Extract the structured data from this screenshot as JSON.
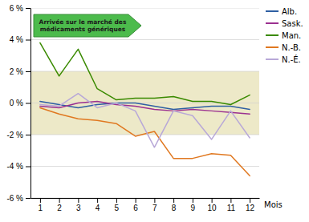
{
  "chart_data": {
    "type": "line",
    "x": [
      1,
      2,
      3,
      4,
      5,
      6,
      7,
      8,
      9,
      10,
      11,
      12
    ],
    "xlim": [
      0.5,
      12.5
    ],
    "xticks": [
      1,
      2,
      3,
      4,
      5,
      6,
      7,
      8,
      9,
      10,
      11,
      12
    ],
    "xlabel": "Mois",
    "ylim": [
      -6,
      6
    ],
    "yticks": [
      {
        "value": -6,
        "label": "-6 %"
      },
      {
        "value": -4,
        "label": "-4 %"
      },
      {
        "value": -2,
        "label": "-2 %"
      },
      {
        "value": 0,
        "label": "0 %"
      },
      {
        "value": 2,
        "label": "2 %"
      },
      {
        "value": 4,
        "label": "4 %"
      },
      {
        "value": 6,
        "label": "6 %"
      }
    ],
    "grid": true,
    "legend": "right",
    "series": [
      {
        "name": "Alb.",
        "color": "#2E5FA3",
        "values": [
          0.1,
          -0.1,
          -0.3,
          -0.1,
          0.0,
          0.0,
          -0.2,
          -0.4,
          -0.3,
          -0.2,
          -0.2,
          -0.4
        ]
      },
      {
        "name": "Sask.",
        "color": "#9B3090",
        "values": [
          -0.2,
          -0.3,
          0.0,
          0.1,
          -0.1,
          -0.2,
          -0.4,
          -0.5,
          -0.4,
          -0.5,
          -0.6,
          -0.7
        ]
      },
      {
        "name": "Man.",
        "color": "#3A8A00",
        "values": [
          3.8,
          1.7,
          3.4,
          0.9,
          0.2,
          0.3,
          0.3,
          0.4,
          0.1,
          0.1,
          -0.1,
          0.5
        ]
      },
      {
        "name": "N.-B.",
        "color": "#E07820",
        "values": [
          -0.3,
          -0.7,
          -1.0,
          -1.1,
          -1.3,
          -2.1,
          -1.8,
          -3.5,
          -3.5,
          -3.2,
          -3.3,
          -4.6
        ]
      },
      {
        "name": "N.-É.",
        "color": "#B8A8D8",
        "values": [
          -0.1,
          -0.2,
          0.6,
          -0.3,
          0.0,
          -0.5,
          -2.8,
          -0.5,
          -0.8,
          -2.3,
          -0.5,
          -2.2
        ]
      }
    ],
    "band": {
      "ymin": -2.0,
      "ymax": 2.0,
      "color": "#EDE9C8"
    },
    "annotation": {
      "text": "Arrivée sur le marché des\nmédicaments génériques",
      "color": "#4CBB4C"
    }
  }
}
